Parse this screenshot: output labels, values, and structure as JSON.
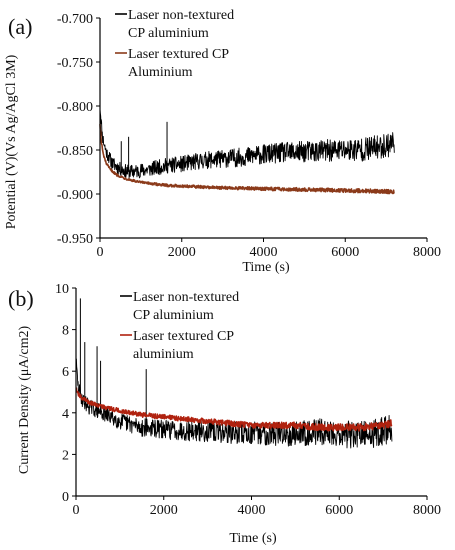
{
  "chart_data": [
    {
      "type": "line",
      "panel_label": "(a)",
      "xlabel": "Time (s)",
      "ylabel": "Potential (V)(Vs Ag/AgCl 3M)",
      "xlim": [
        0,
        8000
      ],
      "ylim": [
        -0.95,
        -0.7
      ],
      "xticks": [
        "0",
        "2000",
        "4000",
        "6000",
        "8000"
      ],
      "yticks": [
        "-0.950",
        "-0.900",
        "-0.850",
        "-0.800",
        "-0.750",
        "-0.700"
      ],
      "legend_position": "top-center",
      "grid": false,
      "series": [
        {
          "name": [
            "Laser non-textured",
            "CP aluminium"
          ],
          "color": "#000000",
          "x": [
            0,
            60,
            150,
            300,
            500,
            700,
            900,
            1200,
            1600,
            2000,
            2500,
            3000,
            3500,
            4000,
            4500,
            5000,
            5500,
            6000,
            6500,
            7000,
            7200
          ],
          "values": [
            -0.8,
            -0.835,
            -0.852,
            -0.865,
            -0.872,
            -0.875,
            -0.874,
            -0.872,
            -0.868,
            -0.866,
            -0.862,
            -0.86,
            -0.858,
            -0.855,
            -0.853,
            -0.852,
            -0.851,
            -0.85,
            -0.849,
            -0.845,
            -0.84
          ],
          "noise": 0.012
        },
        {
          "name": [
            "Laser textured CP",
            "Aluminium"
          ],
          "color": "#8B3A1A",
          "x": [
            0,
            30,
            80,
            150,
            250,
            400,
            600,
            900,
            1200,
            1600,
            2000,
            3000,
            4000,
            5000,
            6000,
            7000,
            7200
          ],
          "values": [
            -0.82,
            -0.84,
            -0.855,
            -0.865,
            -0.872,
            -0.878,
            -0.882,
            -0.886,
            -0.888,
            -0.89,
            -0.891,
            -0.893,
            -0.894,
            -0.895,
            -0.896,
            -0.897,
            -0.898
          ],
          "noise": 0.002
        }
      ]
    },
    {
      "type": "line",
      "panel_label": "(b)",
      "xlabel": "Time (s)",
      "ylabel": "Current Density (μA/cm2)",
      "xlim": [
        0,
        8000
      ],
      "ylim": [
        0,
        10
      ],
      "xticks": [
        "0",
        "2000",
        "4000",
        "6000",
        "8000"
      ],
      "yticks": [
        "0",
        "2",
        "4",
        "6",
        "8",
        "10"
      ],
      "legend_position": "top-center",
      "grid": false,
      "series": [
        {
          "name": [
            "Laser non-textured",
            "CP aluminium"
          ],
          "color": "#000000",
          "x": [
            0,
            50,
            150,
            300,
            500,
            700,
            1000,
            1500,
            2000,
            3000,
            4000,
            5000,
            5500,
            6000,
            6500,
            7000,
            7200
          ],
          "values": [
            6.5,
            5.2,
            4.6,
            4.3,
            4.1,
            3.9,
            3.6,
            3.3,
            3.2,
            3.1,
            3.0,
            3.0,
            3.1,
            3.0,
            2.9,
            3.1,
            3.3
          ],
          "noise": 0.6
        },
        {
          "name": [
            "Laser textured CP",
            "aluminium"
          ],
          "color": "#B0220F",
          "x": [
            0,
            50,
            150,
            300,
            600,
            1000,
            1500,
            2000,
            3000,
            4000,
            5000,
            5500,
            6000,
            6500,
            7000,
            7200
          ],
          "values": [
            5.2,
            4.9,
            4.7,
            4.5,
            4.3,
            4.1,
            3.9,
            3.8,
            3.6,
            3.4,
            3.4,
            3.3,
            3.3,
            3.3,
            3.4,
            3.5
          ],
          "noise": 0.15
        }
      ]
    }
  ]
}
